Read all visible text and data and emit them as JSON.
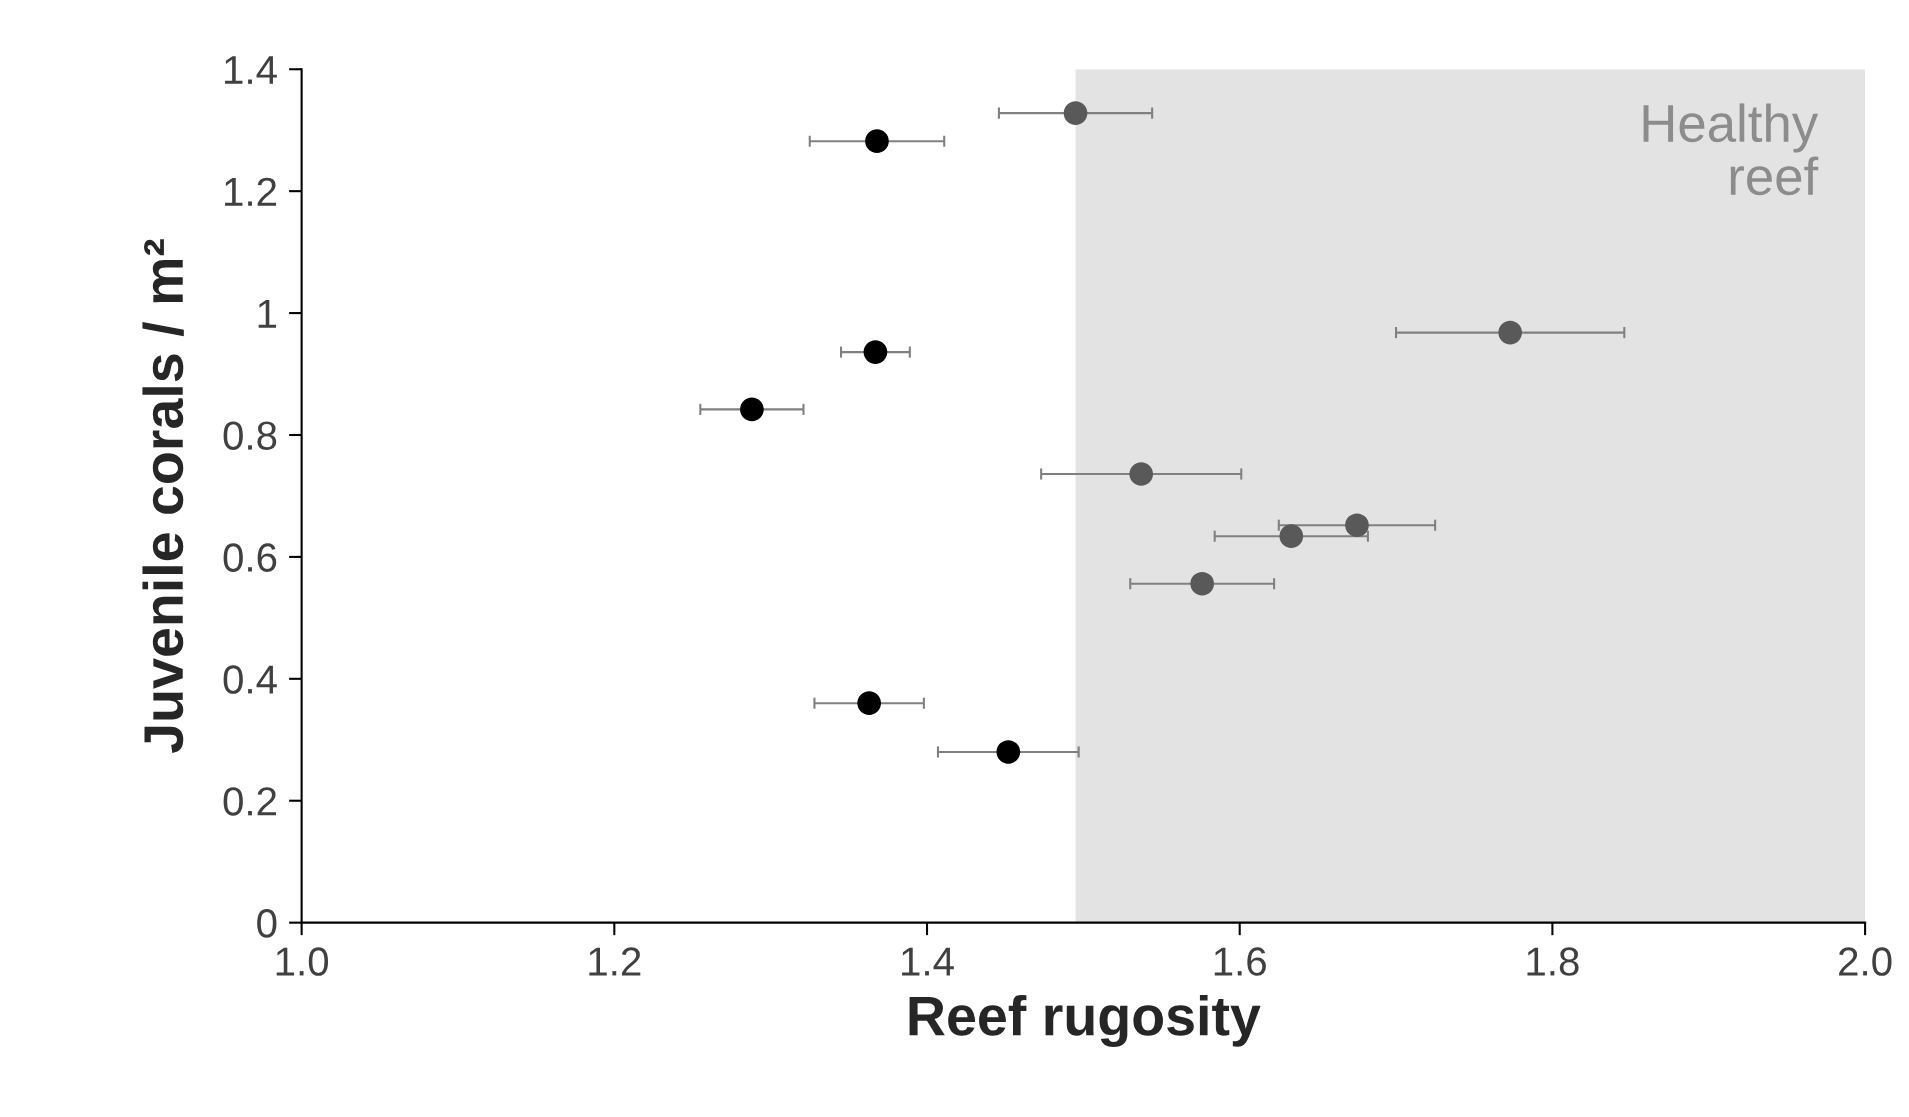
{
  "chart_data": {
    "type": "scatter",
    "xlabel": "Reef rugosity",
    "ylabel": "Juvenile corals / m²",
    "xlim": [
      1.0,
      2.0
    ],
    "xticks": [
      {
        "value": 1.0,
        "label": "1.0"
      },
      {
        "value": 1.2,
        "label": "1.2"
      },
      {
        "value": 1.4,
        "label": "1.4"
      },
      {
        "value": 1.6,
        "label": "1.6"
      },
      {
        "value": 1.8,
        "label": "1.8"
      },
      {
        "value": 2.0,
        "label": "2.0"
      }
    ],
    "ylim": [
      0,
      1.4
    ],
    "yticks": [
      0,
      0.2,
      0.4,
      0.6,
      0.8,
      1,
      1.2,
      1.4
    ],
    "grid": false,
    "legend": false,
    "marker": "circle",
    "series": [
      {
        "color": "#000000",
        "x": [
          1.368,
          1.367,
          1.288,
          1.363,
          1.452
        ],
        "values": [
          1.282,
          0.936,
          0.842,
          0.36,
          0.28
        ],
        "xerrors": [
          0.043,
          0.022,
          0.033,
          0.035,
          0.045
        ]
      },
      {
        "color": "#595959",
        "x": [
          1.495,
          1.773,
          1.537,
          1.675,
          1.633,
          1.576
        ],
        "values": [
          1.328,
          0.968,
          0.736,
          0.652,
          0.634,
          0.556
        ],
        "xerrors": [
          0.049,
          0.073,
          0.064,
          0.05,
          0.049,
          0.046
        ]
      }
    ],
    "bands": [
      {
        "axis": "x",
        "from": 1.495,
        "to": 2.0,
        "label": "Healthy\nreef",
        "color": "#e3e3e3"
      }
    ]
  }
}
